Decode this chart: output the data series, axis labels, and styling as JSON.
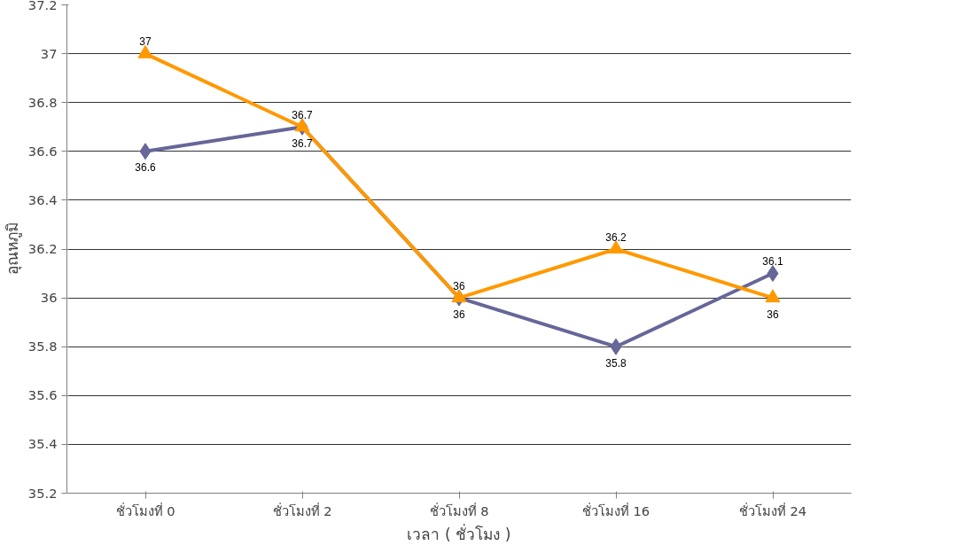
{
  "chart_data": {
    "type": "line",
    "xlabel": "เวลา ( ชั่วโมง )",
    "ylabel": "อุณหภูมิ",
    "categories": [
      "ชั่วโมงที่ 0",
      "ชั่วโมงที่ 2",
      "ชั่วโมงที่ 8",
      "ชั่วโมงที่ 16",
      "ชั่วโมงที่ 24"
    ],
    "series": [
      {
        "color": "#666699",
        "marker": "diamond",
        "values": [
          36.6,
          36.7,
          36,
          35.8,
          36.1
        ]
      },
      {
        "color": "#ff9900",
        "marker": "triangle",
        "values": [
          37,
          36.7,
          36,
          36.2,
          36
        ]
      }
    ],
    "ylim": [
      35.2,
      37.2
    ],
    "yticks": [
      35.2,
      35.4,
      35.6,
      35.8,
      36,
      36.2,
      36.4,
      36.6,
      36.8,
      37,
      37.2
    ],
    "grid": "y",
    "data_labels": true
  }
}
